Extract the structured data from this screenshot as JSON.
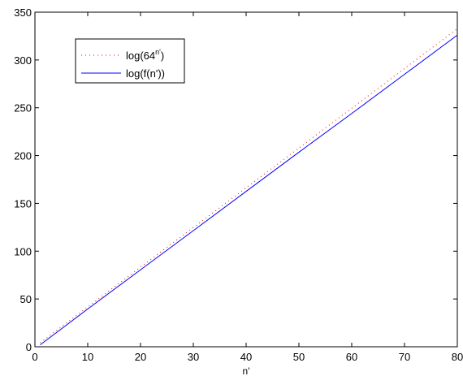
{
  "chart_data": {
    "type": "line",
    "title": "",
    "xlabel": "n'",
    "ylabel": "",
    "xlim": [
      0,
      80
    ],
    "ylim": [
      0,
      350
    ],
    "xticks": [
      0,
      10,
      20,
      30,
      40,
      50,
      60,
      70,
      80
    ],
    "yticks": [
      0,
      50,
      100,
      150,
      200,
      250,
      300,
      350
    ],
    "grid": false,
    "legend_position": "top-left",
    "series": [
      {
        "name": "log(64",
        "name_superscript": "n'",
        "name_suffix": ")",
        "style": "dotted",
        "color": "#ff0000",
        "x": [
          1,
          80
        ],
        "y": [
          4.16,
          332.7
        ]
      },
      {
        "name": "log(f(n'))",
        "style": "solid",
        "color": "#0000ff",
        "x": [
          1,
          10,
          20,
          30,
          40,
          50,
          60,
          70,
          80
        ],
        "y": [
          2,
          39.5,
          80.5,
          121.5,
          162.5,
          203.5,
          244,
          285,
          326
        ]
      }
    ]
  }
}
